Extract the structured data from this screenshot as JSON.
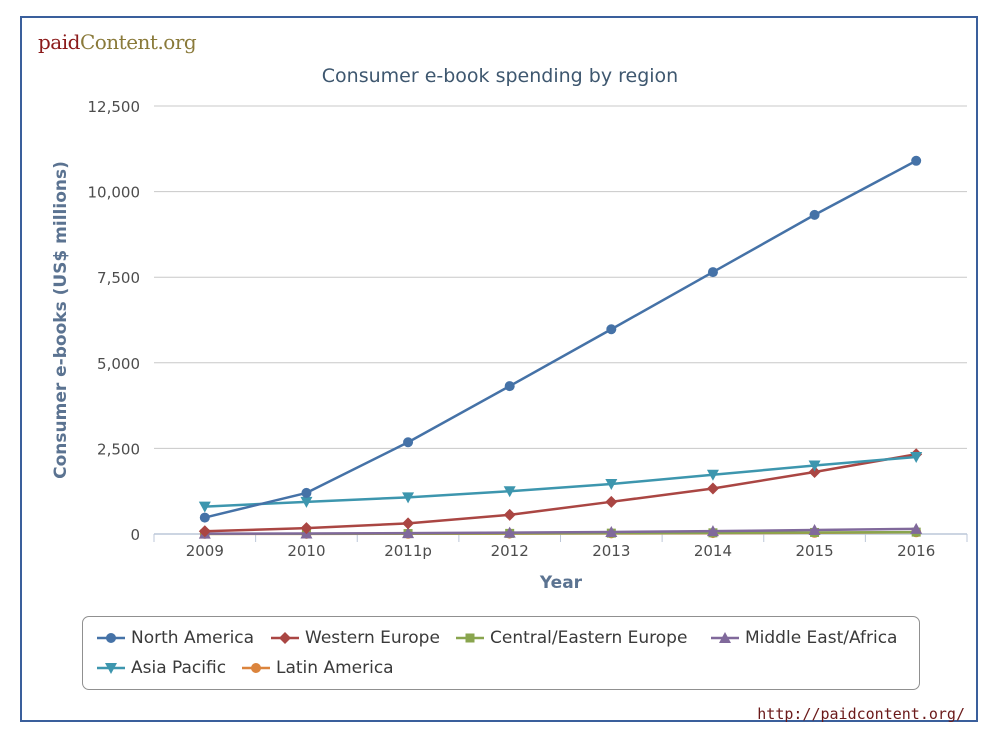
{
  "logo": {
    "part1": "paid",
    "part2": "Content.org"
  },
  "source": "http://paidcontent.org/",
  "chart_data": {
    "type": "line",
    "title": "Consumer e-book spending by region",
    "xlabel": "Year",
    "ylabel": "Consumer e-books (US$ millions)",
    "categories": [
      "2009",
      "2010",
      "2011p",
      "2012",
      "2013",
      "2014",
      "2015",
      "2016"
    ],
    "ylim": [
      0,
      12500
    ],
    "yticks": [
      0,
      2500,
      5000,
      7500,
      10000,
      12500
    ],
    "ytick_labels": [
      "0",
      "2,500",
      "5,000",
      "7,500",
      "10,000",
      "12,500"
    ],
    "grid": true,
    "legend_position": "bottom",
    "series": [
      {
        "name": "North America",
        "color": "#4572a7",
        "marker": "circle",
        "values": [
          480,
          1200,
          2680,
          4320,
          5980,
          7650,
          9320,
          10900
        ]
      },
      {
        "name": "Western Europe",
        "color": "#aa4643",
        "marker": "diamond",
        "values": [
          80,
          170,
          310,
          560,
          940,
          1330,
          1810,
          2330
        ]
      },
      {
        "name": "Central/Eastern Europe",
        "color": "#89a54e",
        "marker": "square",
        "values": [
          5,
          8,
          12,
          18,
          25,
          35,
          45,
          55
        ]
      },
      {
        "name": "Middle East/Africa",
        "color": "#80699b",
        "marker": "triangle",
        "values": [
          10,
          15,
          25,
          40,
          60,
          85,
          115,
          150
        ]
      },
      {
        "name": "Asia Pacific",
        "color": "#3d96ae",
        "marker": "triangle-down",
        "values": [
          800,
          940,
          1070,
          1250,
          1460,
          1730,
          2000,
          2250
        ]
      },
      {
        "name": "Latin America",
        "color": "#db843d",
        "marker": "circle",
        "values": [
          3,
          5,
          8,
          12,
          18,
          25,
          35,
          50
        ]
      }
    ]
  }
}
